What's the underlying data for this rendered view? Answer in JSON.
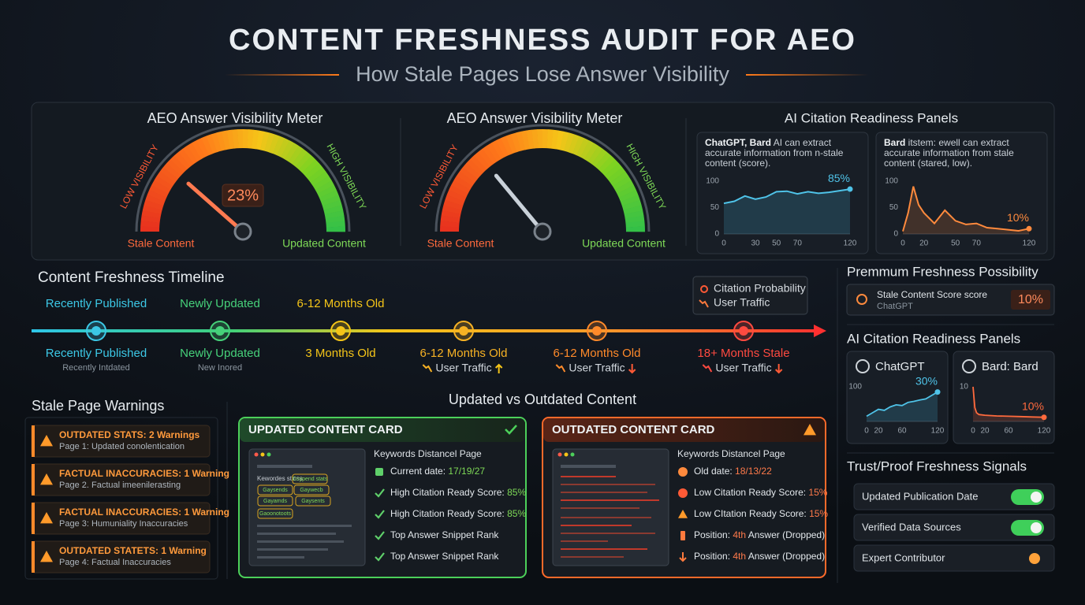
{
  "header": {
    "title": "CONTENT FRESHNESS AUDIT FOR AEO",
    "subtitle": "How Stale Pages Lose Answer Visibility"
  },
  "meters": [
    {
      "title": "AEO Answer Visibility Meter",
      "low": "LOW VISIBILITY",
      "high": "HIGH VISIBILITY",
      "left": "Stale Content",
      "right": "Updated Content",
      "value": 23,
      "value_label": "23%",
      "needle": "#ff7a50"
    },
    {
      "title": "AEO Answer Visibility Meter",
      "low": "LOW VISIBILITY",
      "high": "HIGH VISIBILITY",
      "left": "Stale Content",
      "right": "Updated Content",
      "value": 28,
      "needle": "#c9d1d9"
    }
  ],
  "citation": {
    "title": "AI Citation Readiness Panels",
    "panels": [
      {
        "lead": "ChatGPT, Bard",
        "text": " AI can extract accurate information from n-stale content (score).",
        "label": "85%",
        "color": "#4fc3e8",
        "x": [
          0,
          10,
          20,
          30,
          40,
          50,
          60,
          70,
          80,
          90,
          100,
          110,
          120
        ],
        "values": [
          58,
          62,
          72,
          66,
          70,
          80,
          81,
          76,
          80,
          77,
          79,
          82,
          85
        ],
        "xlim": [
          0,
          120
        ],
        "ylim": [
          0,
          100
        ],
        "xticks": [
          0,
          30,
          50,
          70,
          120
        ],
        "yticks": [
          0,
          50,
          100
        ]
      },
      {
        "lead": "Bard",
        "text": " itstem: ewell can extract accurate information from stale content (stared, low).",
        "label": "10%",
        "color": "#ff8a3d",
        "x": [
          0,
          5,
          10,
          15,
          20,
          30,
          40,
          50,
          60,
          70,
          80,
          90,
          100,
          110,
          120
        ],
        "values": [
          5,
          40,
          90,
          55,
          40,
          20,
          45,
          25,
          18,
          20,
          12,
          10,
          8,
          6,
          10
        ],
        "xlim": [
          0,
          120
        ],
        "ylim": [
          0,
          100
        ],
        "xticks": [
          0,
          20,
          50,
          70,
          120
        ],
        "yticks": [
          0,
          50,
          100
        ]
      }
    ]
  },
  "timeline": {
    "title": "Content Freshness Timeline",
    "top_labels": [
      "Recently Published",
      "Newly Updated",
      "6-12 Months Old"
    ],
    "stages": [
      {
        "label": "Recently Published",
        "sub": "Recently Intdated",
        "color": "#3cc8e6"
      },
      {
        "label": "Newly Updated",
        "sub": "New Inored",
        "color": "#46d17a"
      },
      {
        "label": "3 Months Old",
        "color": "#f5c518"
      },
      {
        "label": "6-12 Months Old",
        "traffic": "User Traffic",
        "trend": "up",
        "color": "#f7b224"
      },
      {
        "label": "6-12 Months Old",
        "traffic": "User Traffic",
        "trend": "down",
        "color": "#ff8a2a"
      },
      {
        "label": "18+ Months Stale",
        "traffic": "User Traffic",
        "trend": "down",
        "color": "#ff4a40"
      }
    ],
    "legend": [
      "Citation Probability",
      "User Traffic"
    ]
  },
  "warnings": {
    "title": "Stale Page Warnings",
    "items": [
      {
        "title": "OUTDATED STATS: 2 Warnings",
        "sub": "Page 1: Updated conolentication"
      },
      {
        "title": "FACTUAL INACCURACIES: 1 Warning",
        "sub": "Page 2. Factual imeenilerasting"
      },
      {
        "title": "FACTUAL INACCURACIES: 1 Warning",
        "sub": "Page 3: Humuniality Inaccuracies"
      },
      {
        "title": "OUTDATED STATETS: 1 Warning",
        "sub": "Page 4: Factual Inaccuracies"
      }
    ]
  },
  "comparison": {
    "title": "Updated vs Outdated Content",
    "cards": [
      {
        "title": "UPDATED CONTENT CARD",
        "kind": "updated",
        "heading": "Keywords Distancel Page",
        "mockup": {
          "heading": "Kewordes sticss",
          "chips": [
            "Gsypend stats",
            "Gaysends",
            "Gaywecb",
            "Gayamds",
            "Gaysents",
            "Gaoonotoots"
          ]
        },
        "items": [
          {
            "icon": "calendar",
            "text": "Current date: ",
            "value": "17/19/27"
          },
          {
            "icon": "check",
            "text": "High Citation Ready Score: ",
            "value": "85%"
          },
          {
            "icon": "check",
            "text": "High Citation Ready Score: ",
            "value": "85%"
          },
          {
            "icon": "check",
            "text": "Top Answer Snippet Rank"
          },
          {
            "icon": "check",
            "text": "Top Answer Snippet Rank"
          }
        ]
      },
      {
        "title": "OUTDATED CONTENT CARD",
        "kind": "outdated",
        "heading": "Keywords Distancel Page",
        "items": [
          {
            "icon": "clock",
            "text": "Old date: ",
            "value": "18/13/22"
          },
          {
            "icon": "alert",
            "text": "Low Citation Ready Score: ",
            "value": "15%"
          },
          {
            "icon": "warning",
            "text": "Low CItation Ready Score: ",
            "value": "15%"
          },
          {
            "icon": "rank",
            "text": "Position: ",
            "value": "4th",
            "after": " Answer (Dropped)"
          },
          {
            "icon": "down",
            "text": "Position: ",
            "value": "4th",
            "after": " Answer (Dropped)"
          }
        ]
      }
    ]
  },
  "premium": {
    "title": "Premmum Freshness Possibility",
    "label": "Stale Content Score score",
    "source": "ChatGPT",
    "value_label": "10%"
  },
  "mini_panels": {
    "title": "AI Citation Readiness Panels",
    "charts": [
      {
        "name": "ChatGPT",
        "label": "30%",
        "color": "#4fc3e8",
        "x": [
          0,
          10,
          20,
          30,
          40,
          50,
          60,
          70,
          80,
          90,
          100,
          110,
          120
        ],
        "values": [
          15,
          25,
          35,
          32,
          42,
          48,
          46,
          55,
          58,
          62,
          65,
          75,
          85
        ],
        "xlim": [
          0,
          120
        ],
        "ylim": [
          0,
          100
        ],
        "xticks": [
          0,
          20,
          60,
          120
        ],
        "yticks": [
          100
        ]
      },
      {
        "name": "Bard: Bard",
        "label": "10%",
        "color": "#ff6a3d",
        "x": [
          0,
          3,
          6,
          10,
          20,
          40,
          60,
          80,
          100,
          120
        ],
        "values": [
          10,
          4,
          2.5,
          2,
          1.8,
          1.6,
          1.5,
          1.4,
          1.3,
          1.2
        ],
        "xlim": [
          0,
          120
        ],
        "ylim": [
          0,
          10
        ],
        "xticks": [
          0,
          20,
          60,
          120
        ],
        "yticks": [
          10
        ]
      }
    ]
  },
  "signals": {
    "title": "Trust/Proof Freshness Signals",
    "items": [
      {
        "label": "Updated Publication Date",
        "on": true
      },
      {
        "label": "Verified Data Sources",
        "on": true
      },
      {
        "label": "Expert Contributor",
        "on": false
      }
    ]
  }
}
